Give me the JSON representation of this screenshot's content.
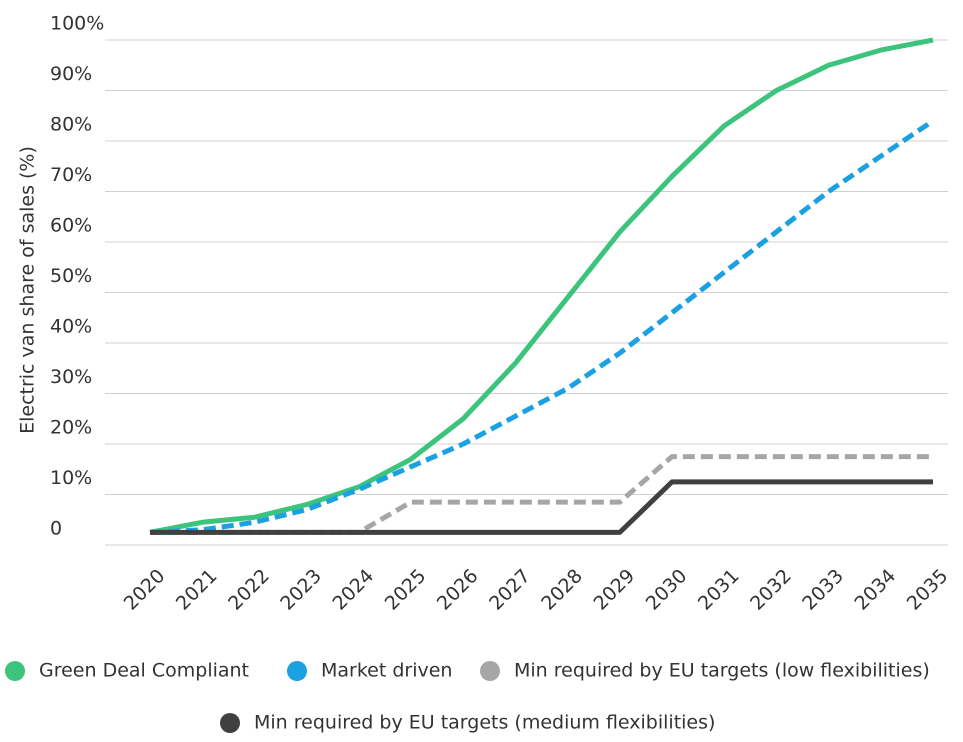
{
  "chart_data": {
    "type": "line",
    "y_label": "Electric van share of sales (%)",
    "x": [
      2020,
      2021,
      2022,
      2023,
      2024,
      2025,
      2026,
      2027,
      2028,
      2029,
      2030,
      2031,
      2032,
      2033,
      2034,
      2035
    ],
    "xlim": [
      2020,
      2035
    ],
    "ylim": [
      0,
      100
    ],
    "yticks": [
      {
        "value": 0,
        "label": "0"
      },
      {
        "value": 10,
        "label": "10%"
      },
      {
        "value": 20,
        "label": "20%"
      },
      {
        "value": 30,
        "label": "30%"
      },
      {
        "value": 40,
        "label": "40%"
      },
      {
        "value": 50,
        "label": "50%"
      },
      {
        "value": 60,
        "label": "60%"
      },
      {
        "value": 70,
        "label": "70%"
      },
      {
        "value": 80,
        "label": "80%"
      },
      {
        "value": 90,
        "label": "90%"
      },
      {
        "value": 100,
        "label": "100%"
      }
    ],
    "grid": true,
    "legend": "bottom",
    "series": [
      {
        "name": "Green Deal Compliant",
        "color": "#3cc47c",
        "dashed": false,
        "values": [
          2.5,
          4.5,
          5.5,
          8,
          11.5,
          17,
          25,
          36,
          49,
          62,
          73,
          83,
          90,
          95,
          98,
          100
        ]
      },
      {
        "name": "Market driven",
        "color": "#1ba1e2",
        "dashed": true,
        "values": [
          2.5,
          3,
          4.5,
          7,
          11,
          15.5,
          20,
          25.5,
          31,
          38,
          46,
          54,
          62,
          70,
          77,
          84
        ]
      },
      {
        "name": "Min required by EU targets (low flexibilities)",
        "color": "#a6a6a6",
        "dashed": true,
        "values": [
          2.5,
          2.5,
          2.5,
          2.5,
          2.5,
          8.5,
          8.5,
          8.5,
          8.5,
          8.5,
          17.5,
          17.5,
          17.5,
          17.5,
          17.5,
          17.5
        ]
      },
      {
        "name": "Min required by EU targets (medium flexibilities)",
        "color": "#404040",
        "dashed": false,
        "values": [
          2.5,
          2.5,
          2.5,
          2.5,
          2.5,
          2.5,
          2.5,
          2.5,
          2.5,
          2.5,
          12.5,
          12.5,
          12.5,
          12.5,
          12.5,
          12.5
        ]
      }
    ]
  }
}
